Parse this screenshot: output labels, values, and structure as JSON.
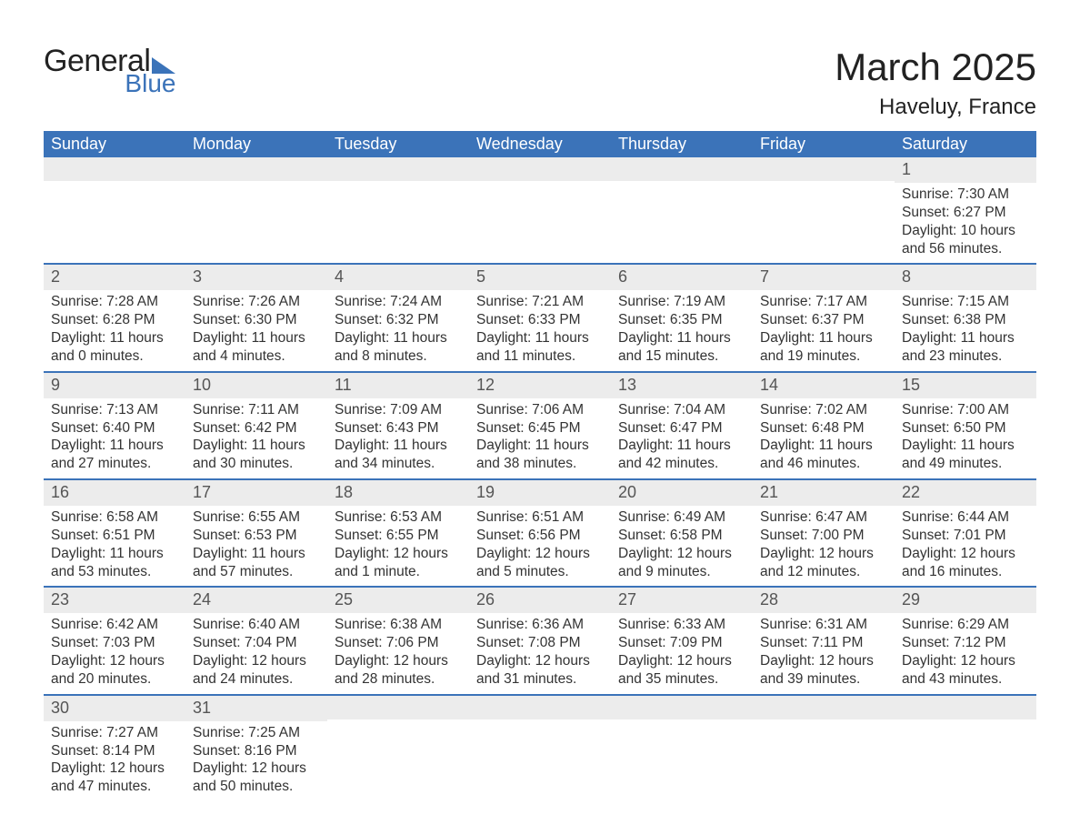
{
  "brand": {
    "word1": "General",
    "word2": "Blue",
    "accent_color": "#3b73b9"
  },
  "title": {
    "month": "March 2025",
    "location": "Haveluy, France"
  },
  "colors": {
    "header_bg": "#3b73b9",
    "header_fg": "#ffffff",
    "row_border": "#3b73b9",
    "daynum_bg": "#ececec",
    "text": "#333333",
    "page_bg": "#ffffff"
  },
  "typography": {
    "title_fontsize": 42,
    "location_fontsize": 24,
    "th_fontsize": 18,
    "cell_fontsize": 15.5
  },
  "layout": {
    "cols": 7,
    "rows": 6,
    "first_day_col": 6
  },
  "weekdays": [
    "Sunday",
    "Monday",
    "Tuesday",
    "Wednesday",
    "Thursday",
    "Friday",
    "Saturday"
  ],
  "days": [
    {
      "n": 1,
      "sunrise": "7:30 AM",
      "sunset": "6:27 PM",
      "daylight": "10 hours and 56 minutes."
    },
    {
      "n": 2,
      "sunrise": "7:28 AM",
      "sunset": "6:28 PM",
      "daylight": "11 hours and 0 minutes."
    },
    {
      "n": 3,
      "sunrise": "7:26 AM",
      "sunset": "6:30 PM",
      "daylight": "11 hours and 4 minutes."
    },
    {
      "n": 4,
      "sunrise": "7:24 AM",
      "sunset": "6:32 PM",
      "daylight": "11 hours and 8 minutes."
    },
    {
      "n": 5,
      "sunrise": "7:21 AM",
      "sunset": "6:33 PM",
      "daylight": "11 hours and 11 minutes."
    },
    {
      "n": 6,
      "sunrise": "7:19 AM",
      "sunset": "6:35 PM",
      "daylight": "11 hours and 15 minutes."
    },
    {
      "n": 7,
      "sunrise": "7:17 AM",
      "sunset": "6:37 PM",
      "daylight": "11 hours and 19 minutes."
    },
    {
      "n": 8,
      "sunrise": "7:15 AM",
      "sunset": "6:38 PM",
      "daylight": "11 hours and 23 minutes."
    },
    {
      "n": 9,
      "sunrise": "7:13 AM",
      "sunset": "6:40 PM",
      "daylight": "11 hours and 27 minutes."
    },
    {
      "n": 10,
      "sunrise": "7:11 AM",
      "sunset": "6:42 PM",
      "daylight": "11 hours and 30 minutes."
    },
    {
      "n": 11,
      "sunrise": "7:09 AM",
      "sunset": "6:43 PM",
      "daylight": "11 hours and 34 minutes."
    },
    {
      "n": 12,
      "sunrise": "7:06 AM",
      "sunset": "6:45 PM",
      "daylight": "11 hours and 38 minutes."
    },
    {
      "n": 13,
      "sunrise": "7:04 AM",
      "sunset": "6:47 PM",
      "daylight": "11 hours and 42 minutes."
    },
    {
      "n": 14,
      "sunrise": "7:02 AM",
      "sunset": "6:48 PM",
      "daylight": "11 hours and 46 minutes."
    },
    {
      "n": 15,
      "sunrise": "7:00 AM",
      "sunset": "6:50 PM",
      "daylight": "11 hours and 49 minutes."
    },
    {
      "n": 16,
      "sunrise": "6:58 AM",
      "sunset": "6:51 PM",
      "daylight": "11 hours and 53 minutes."
    },
    {
      "n": 17,
      "sunrise": "6:55 AM",
      "sunset": "6:53 PM",
      "daylight": "11 hours and 57 minutes."
    },
    {
      "n": 18,
      "sunrise": "6:53 AM",
      "sunset": "6:55 PM",
      "daylight": "12 hours and 1 minute."
    },
    {
      "n": 19,
      "sunrise": "6:51 AM",
      "sunset": "6:56 PM",
      "daylight": "12 hours and 5 minutes."
    },
    {
      "n": 20,
      "sunrise": "6:49 AM",
      "sunset": "6:58 PM",
      "daylight": "12 hours and 9 minutes."
    },
    {
      "n": 21,
      "sunrise": "6:47 AM",
      "sunset": "7:00 PM",
      "daylight": "12 hours and 12 minutes."
    },
    {
      "n": 22,
      "sunrise": "6:44 AM",
      "sunset": "7:01 PM",
      "daylight": "12 hours and 16 minutes."
    },
    {
      "n": 23,
      "sunrise": "6:42 AM",
      "sunset": "7:03 PM",
      "daylight": "12 hours and 20 minutes."
    },
    {
      "n": 24,
      "sunrise": "6:40 AM",
      "sunset": "7:04 PM",
      "daylight": "12 hours and 24 minutes."
    },
    {
      "n": 25,
      "sunrise": "6:38 AM",
      "sunset": "7:06 PM",
      "daylight": "12 hours and 28 minutes."
    },
    {
      "n": 26,
      "sunrise": "6:36 AM",
      "sunset": "7:08 PM",
      "daylight": "12 hours and 31 minutes."
    },
    {
      "n": 27,
      "sunrise": "6:33 AM",
      "sunset": "7:09 PM",
      "daylight": "12 hours and 35 minutes."
    },
    {
      "n": 28,
      "sunrise": "6:31 AM",
      "sunset": "7:11 PM",
      "daylight": "12 hours and 39 minutes."
    },
    {
      "n": 29,
      "sunrise": "6:29 AM",
      "sunset": "7:12 PM",
      "daylight": "12 hours and 43 minutes."
    },
    {
      "n": 30,
      "sunrise": "7:27 AM",
      "sunset": "8:14 PM",
      "daylight": "12 hours and 47 minutes."
    },
    {
      "n": 31,
      "sunrise": "7:25 AM",
      "sunset": "8:16 PM",
      "daylight": "12 hours and 50 minutes."
    }
  ],
  "labels": {
    "sunrise": "Sunrise: ",
    "sunset": "Sunset: ",
    "daylight": "Daylight: "
  }
}
